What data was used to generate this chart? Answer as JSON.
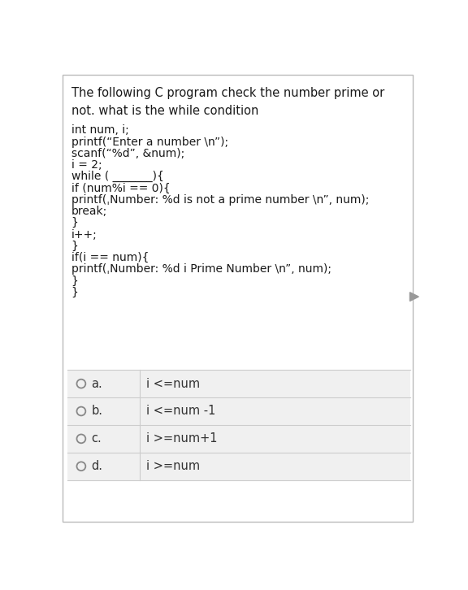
{
  "bg_color": "#ffffff",
  "border_color": "#bbbbbb",
  "question_text": "The following C program check the number prime or\nnot. what is the while condition",
  "code_lines": [
    "int num, i;",
    "printf(“Enter a number \\n”);",
    "scanf(“%d”, &num);",
    "i = 2;",
    "while ( _______){",
    "if (num%i == 0){",
    "printf(ˌNumber: %d is not a prime number \\n”, num);",
    "break;",
    "}",
    "i++;",
    "}",
    "if(i == num){",
    "printf(ˌNumber: %d i Prime Number \\n”, num);",
    "}",
    "}"
  ],
  "options": [
    {
      "label": "a.",
      "text": "i <=num"
    },
    {
      "label": "b.",
      "text": "i <=num -1"
    },
    {
      "label": "c.",
      "text": "i >=num+1"
    },
    {
      "label": "d.",
      "text": "i >=num"
    }
  ],
  "font_size_question": 10.5,
  "font_size_code": 10.0,
  "font_size_options": 10.5,
  "arrow_color": "#999999",
  "option_bg": "#f0f0f0",
  "option_border": "#cccccc"
}
